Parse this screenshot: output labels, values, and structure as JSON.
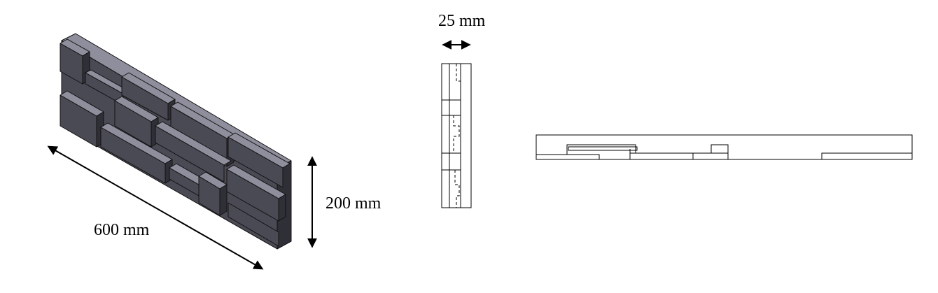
{
  "dimensions": {
    "length": "600 mm",
    "height": "200 mm",
    "thickness": "25 mm"
  },
  "colors": {
    "face_front": "#4a4a55",
    "face_top": "#8e8e9c",
    "face_side": "#2f2f38",
    "outline": "#111111",
    "line": "#000000"
  },
  "views": [
    "isometric-view",
    "side-view",
    "top-view"
  ]
}
